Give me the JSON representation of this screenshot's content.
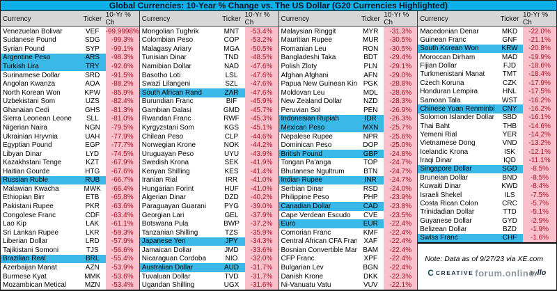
{
  "chart_data": {
    "type": "table",
    "title": "Global Currencies: 10-Year % Change vs. The US Dollar (G20 Currencies Highlighted)",
    "columns": {
      "currency": "Currency",
      "ticker": "Ticker",
      "change": "10-Yr % Ch"
    },
    "row_fields": [
      "currency",
      "ticker",
      "ten_year_pct_change",
      "g20_highlighted"
    ],
    "groups": [
      {
        "rows": [
          [
            "Venezuelan Bolivar",
            "VEF",
            "-99.9998%",
            0
          ],
          [
            "Sudanese Pound",
            "SDG",
            "-99.3%",
            0
          ],
          [
            "Syrian Pound",
            "SYP",
            "-99.1%",
            0
          ],
          [
            "Argentine Peso",
            "ARS",
            "-98.3%",
            1
          ],
          [
            "Turkish Lira",
            "TRY",
            "-92.6%",
            1
          ],
          [
            "Surinamese Dollar",
            "SRD",
            "-91.5%",
            0
          ],
          [
            "Angolan Kwanza",
            "AOA",
            "-88.2%",
            0
          ],
          [
            "North Korean Won",
            "KPW",
            "-85.9%",
            0
          ],
          [
            "Uzbekistani Som",
            "UZS",
            "-82.4%",
            0
          ],
          [
            "Ghanaian Cedi",
            "GHS",
            "-81.3%",
            0
          ],
          [
            "Sierra Leonean Leone",
            "SLL",
            "-81.0%",
            0
          ],
          [
            "Nigerian Naira",
            "NGN",
            "-79.5%",
            0
          ],
          [
            "Ukrainian Hryvnia",
            "UAH",
            "-77.9%",
            0
          ],
          [
            "Egyptian Pound",
            "EGP",
            "-77.7%",
            0
          ],
          [
            "Libyan Dinar",
            "LYD",
            "-74.5%",
            0
          ],
          [
            "Kazakhstani Tenge",
            "KZT",
            "-67.9%",
            0
          ],
          [
            "Haitian Gourde",
            "HTG",
            "-67.6%",
            0
          ],
          [
            "Russian Ruble",
            "RUB",
            "-66.7%",
            1
          ],
          [
            "Malawian Kwacha",
            "MWK",
            "-66.4%",
            0
          ],
          [
            "Ethiopian Birr",
            "ETB",
            "-65.8%",
            0
          ],
          [
            "Pakistani Rupee",
            "PKR",
            "-63.6%",
            0
          ],
          [
            "Congolese Franc",
            "CDF",
            "-63.4%",
            0
          ],
          [
            "Lao Kip",
            "LAK",
            "-61.1%",
            0
          ],
          [
            "Sri Lankan Rupee",
            "LKR",
            "-59.3%",
            0
          ],
          [
            "Liberian Dollar",
            "LRD",
            "-57.9%",
            0
          ],
          [
            "Tajikistani Somoni",
            "TJS",
            "-56.6%",
            0
          ],
          [
            "Brazilian Real",
            "BRL",
            "-55.4%",
            1
          ],
          [
            "Azerbaijan Manat",
            "AZN",
            "-53.9%",
            0
          ],
          [
            "Burmese Kyat",
            "MMK",
            "-53.6%",
            0
          ],
          [
            "Mozambican Metical",
            "MZN",
            "-53.4%",
            0
          ]
        ]
      },
      {
        "rows": [
          [
            "Mongolian Tughrik",
            "MNT",
            "-53.4%",
            0
          ],
          [
            "Colombian Peso",
            "COP",
            "-53.2%",
            0
          ],
          [
            "Malagasy Ariary",
            "MGA",
            "-50.5%",
            0
          ],
          [
            "Tunisian Dinar",
            "TND",
            "-48.5%",
            0
          ],
          [
            "Namibian Dollar",
            "NAD",
            "-47.6%",
            0
          ],
          [
            "Basotho Loti",
            "LSL",
            "-47.6%",
            0
          ],
          [
            "Swazi Lilangeni",
            "SZL",
            "-47.6%",
            0
          ],
          [
            "South African Rand",
            "ZAR",
            "-47.6%",
            1
          ],
          [
            "Burundian Franc",
            "BIF",
            "-45.9%",
            0
          ],
          [
            "Gambian Dalasi",
            "GMD",
            "-45.7%",
            0
          ],
          [
            "Rwandan Franc",
            "RWF",
            "-45.3%",
            0
          ],
          [
            "Kyrgyzstani Som",
            "KGS",
            "-45.1%",
            0
          ],
          [
            "Chilean Peso",
            "CLP",
            "-44.6%",
            0
          ],
          [
            "Norwegian Krone",
            "NOK",
            "-44.2%",
            0
          ],
          [
            "Uruguayan Peso",
            "UYU",
            "-43.9%",
            0
          ],
          [
            "Swedish Krona",
            "SEK",
            "-41.9%",
            0
          ],
          [
            "Kenyan Shilling",
            "KES",
            "-41.4%",
            0
          ],
          [
            "Iranian Rial",
            "IRR",
            "-41.0%",
            0
          ],
          [
            "Hungarian Forint",
            "HUF",
            "-41.0%",
            0
          ],
          [
            "Algerian Dinar",
            "DZD",
            "-40.2%",
            0
          ],
          [
            "Paraguayan Guarani",
            "PYG",
            "-39.0%",
            0
          ],
          [
            "Georgian Lari",
            "GEL",
            "-37.9%",
            0
          ],
          [
            "Botswana Pula",
            "BWP",
            "-37.2%",
            0
          ],
          [
            "Tanzanian Shilling",
            "TZS",
            "-35.9%",
            0
          ],
          [
            "Japanese Yen",
            "JPY",
            "-34.3%",
            1
          ],
          [
            "Jamaican Dollar",
            "JMD",
            "-33.6%",
            0
          ],
          [
            "Nicaraguan Cordoba",
            "NIO",
            "-32.0%",
            0
          ],
          [
            "Australian Dollar",
            "AUD",
            "-31.7%",
            1
          ],
          [
            "Tuvaluan Dollar",
            "TVD",
            "-31.7%",
            0
          ],
          [
            "Ugandan Shilling",
            "UGX",
            "-31.6%",
            0
          ]
        ]
      },
      {
        "rows": [
          [
            "Malaysian Ringgit",
            "MYR",
            "-31.3%",
            0
          ],
          [
            "Mauritian Rupee",
            "MUR",
            "-30.5%",
            0
          ],
          [
            "Romanian Leu",
            "RON",
            "-30.5%",
            0
          ],
          [
            "Bangladeshi Taka",
            "BDT",
            "-29.4%",
            0
          ],
          [
            "Polish Zloty",
            "PLN",
            "-29.1%",
            0
          ],
          [
            "Afghan Afghani",
            "AFN",
            "-29.0%",
            0
          ],
          [
            "Papua New Guinean Kina",
            "PGK",
            "-28.8%",
            0
          ],
          [
            "Moldovan Leu",
            "MDL",
            "-28.6%",
            0
          ],
          [
            "New Zealand Dollar",
            "NZD",
            "-28.3%",
            0
          ],
          [
            "Peruvian Sol",
            "PEN",
            "-26.9%",
            0
          ],
          [
            "Indonesian Rupiah",
            "IDR",
            "-26.3%",
            1
          ],
          [
            "Mexican Peso",
            "MXN",
            "-25.7%",
            1
          ],
          [
            "Nepalese Rupee",
            "NPR",
            "-25.6%",
            0
          ],
          [
            "Dominican Peso",
            "DOP",
            "-25.0%",
            0
          ],
          [
            "British Pound",
            "GBP",
            "-24.8%",
            1
          ],
          [
            "Tongan Pa'anga",
            "TOP",
            "-24.7%",
            0
          ],
          [
            "Bhutanese Ngultrum",
            "BTN",
            "-24.7%",
            0
          ],
          [
            "Indian Rupee",
            "INR",
            "-24.7%",
            1
          ],
          [
            "Serbian Dinar",
            "RSD",
            "-24.0%",
            0
          ],
          [
            "Philippine Peso",
            "PHP",
            "-23.9%",
            0
          ],
          [
            "Canadian Dollar",
            "CAD",
            "-23.8%",
            1
          ],
          [
            "Cape Verdean Escudo",
            "CVE",
            "-23.5%",
            0
          ],
          [
            "Euro",
            "EUR",
            "-22.4%",
            1
          ],
          [
            "Comorian Franc",
            "KMF",
            "-22.4%",
            0
          ],
          [
            "Central African CFA Franc",
            "XAF",
            "-22.4%",
            0
          ],
          [
            "Bosnian Convertible Mark",
            "BAM",
            "-22.4%",
            0
          ],
          [
            "CFP Franc",
            "XPF",
            "-22.4%",
            0
          ],
          [
            "Bulgarian Lev",
            "BGN",
            "-22.4%",
            0
          ],
          [
            "Danish Krone",
            "DKK",
            "-22.3%",
            0
          ],
          [
            "Ni-Vanuatu Vatu",
            "VUV",
            "-22.1%",
            0
          ]
        ]
      },
      {
        "rows": [
          [
            "Macedonian Denar",
            "MKD",
            "-22.0%",
            0
          ],
          [
            "Guinean Franc",
            "GNF",
            "-21.1%",
            0
          ],
          [
            "South Korean Won",
            "KRW",
            "-20.8%",
            1
          ],
          [
            "Moroccan Dirham",
            "MAD",
            "-19.9%",
            0
          ],
          [
            "Fijian Dollar",
            "FJD",
            "-18.6%",
            0
          ],
          [
            "Turkmenistani Manat",
            "TMT",
            "-18.4%",
            0
          ],
          [
            "Czech Koruna",
            "CZK",
            "-17.9%",
            0
          ],
          [
            "Honduran Lempira",
            "HNL",
            "-17.5%",
            0
          ],
          [
            "Samoan Tala",
            "WST",
            "-16.2%",
            0
          ],
          [
            "Chinese Yuan Renminbi",
            "CNY",
            "-16.2%",
            1
          ],
          [
            "Solomon Islander Dollar",
            "SBD",
            "-16.1%",
            0
          ],
          [
            "Thai Baht",
            "THB",
            "-14.6%",
            0
          ],
          [
            "Yemeni Rial",
            "YER",
            "-14.2%",
            0
          ],
          [
            "Vietnamese Dong",
            "VND",
            "-13.2%",
            0
          ],
          [
            "Icelandic Krona",
            "ISK",
            "-12.1%",
            0
          ],
          [
            "Iraqi Dinar",
            "IQD",
            "-11.1%",
            0
          ],
          [
            "Singapore Dollar",
            "SGD",
            "-8.5%",
            1
          ],
          [
            "Bruneian Dollar",
            "BND",
            "-8.5%",
            0
          ],
          [
            "Kuwaiti Dinar",
            "KWD",
            "-8.4%",
            0
          ],
          [
            "Israeli Shekel",
            "ILS",
            "-7.5%",
            0
          ],
          [
            "Costa Rican Colon",
            "CRC",
            "-5.7%",
            0
          ],
          [
            "Trinidadian Dollar",
            "TTD",
            "-5.1%",
            0
          ],
          [
            "Guyanese Dollar",
            "GYD",
            "-2.9%",
            0
          ],
          [
            "Belizean Dollar",
            "BZD",
            "-1.9%",
            0
          ],
          [
            "Swiss Franc",
            "CHF",
            "-1.6%",
            1
          ]
        ]
      }
    ]
  },
  "note": {
    "text": "Note: Data as of 9/27/23 via XE.com"
  },
  "logo": {
    "mark": "C",
    "brand": "CREATIVE",
    "watermark": "forum.online",
    "tail": "by",
    "tail_italic": "llo"
  },
  "colors": {
    "title_bg": "#0fb0ea",
    "g20_highlight": "#3ab9e9",
    "pct_column_bg": "#f9c0cc",
    "pct_text": "#a80d20",
    "header_bg": "#d6d6d6"
  }
}
